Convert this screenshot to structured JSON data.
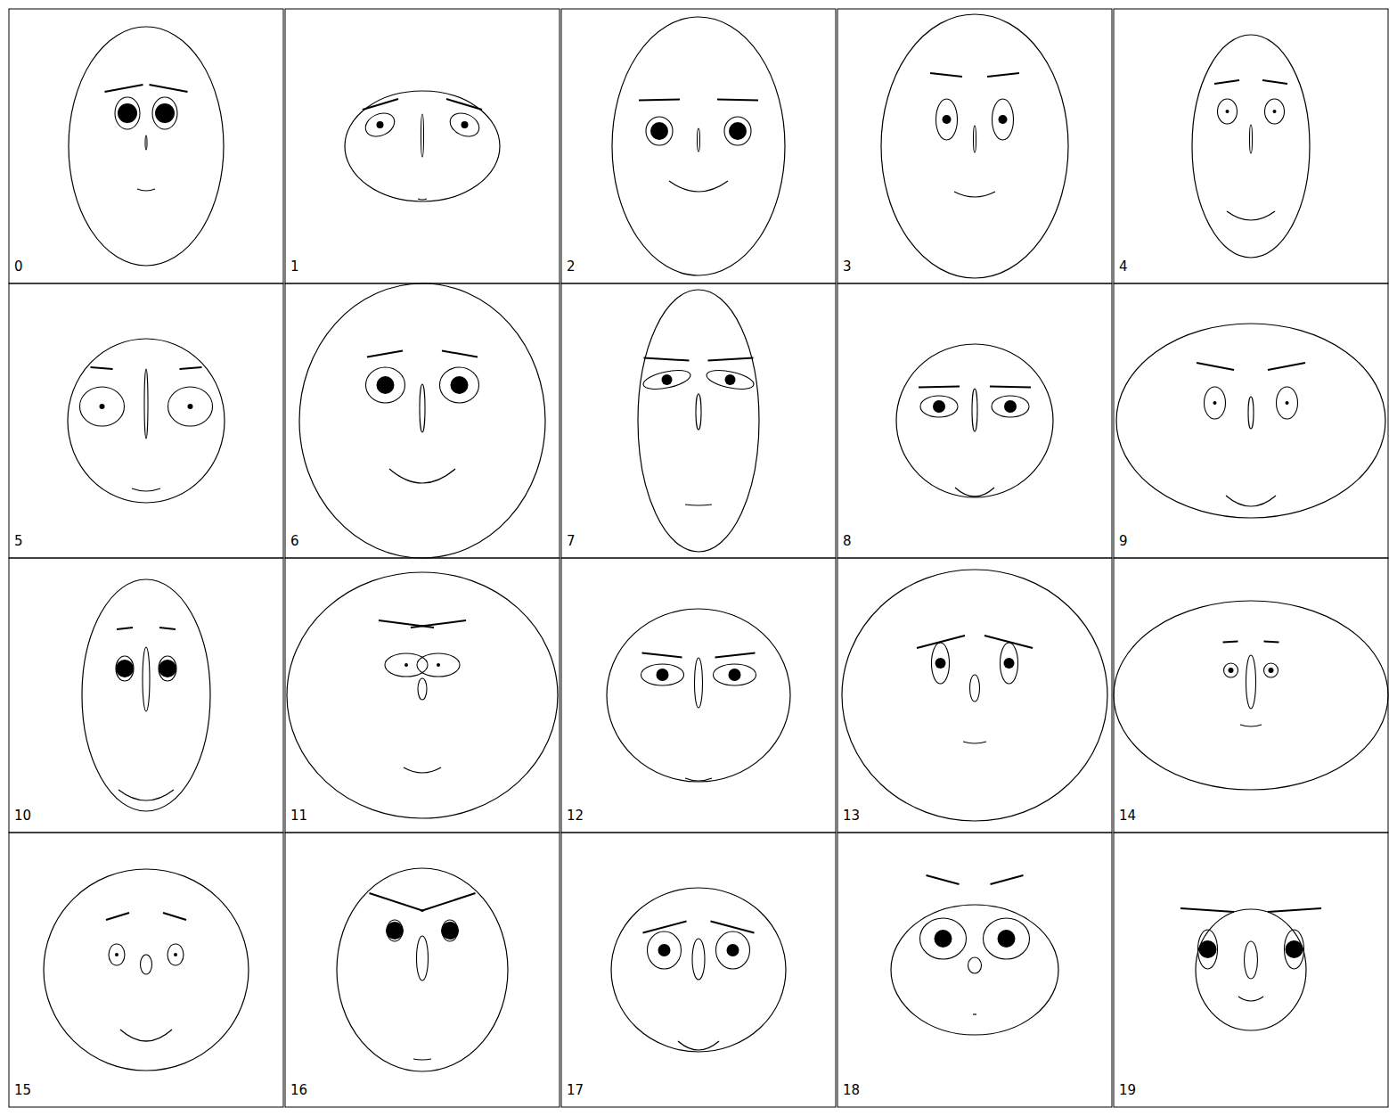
{
  "chart_data": {
    "type": "chernoff",
    "faces": [
      {
        "label": 0,
        "face_rx": 87,
        "face_ry": 134,
        "eye_y": -37,
        "eye_dx": 21,
        "eye_rx": 14,
        "eye_ry": 18,
        "eye_angle": 0,
        "pupil_r": 11,
        "brow_dx": 25,
        "brow_y": -65,
        "brow_len": 43,
        "brow_slant": -8,
        "nose_y": -4,
        "nose_len": 16,
        "nose_w": 2,
        "mouth_y": 48,
        "mouth_w": 20,
        "mouth_curve": 2
      },
      {
        "label": 1,
        "face_rx": 87,
        "face_ry": 62,
        "eye_y": -24,
        "eye_dx": 47.5,
        "eye_rx": 17,
        "eye_ry": 12,
        "eye_angle": -25,
        "pupil_r": 4,
        "brow_dx": 47,
        "brow_y": -47,
        "brow_len": 40,
        "brow_slant": -12,
        "nose_y": -12,
        "nose_len": 48,
        "nose_w": 3,
        "mouth_y": 59,
        "mouth_w": 10,
        "mouth_curve": 1
      },
      {
        "label": 2,
        "face_rx": 97,
        "face_ry": 145,
        "eye_y": -17,
        "eye_dx": 44,
        "eye_rx": 15,
        "eye_ry": 16,
        "eye_angle": 0,
        "pupil_r": 10,
        "brow_dx": 44,
        "brow_y": -52,
        "brow_len": 46,
        "brow_slant": -1,
        "nose_y": -7,
        "nose_len": 26,
        "nose_w": 3,
        "mouth_y": 39,
        "mouth_w": 66,
        "mouth_curve": 12
      },
      {
        "label": 3,
        "face_rx": 105,
        "face_ry": 148,
        "eye_y": -30,
        "eye_dx": 31.5,
        "eye_rx": 12,
        "eye_ry": 23,
        "eye_angle": 0,
        "pupil_r": 5,
        "brow_dx": 32,
        "brow_y": -80,
        "brow_len": 36,
        "brow_slant": 4,
        "nose_y": -8,
        "nose_len": 30,
        "nose_w": 3,
        "mouth_y": 51,
        "mouth_w": 46,
        "mouth_curve": 6
      },
      {
        "label": 4,
        "face_rx": 66,
        "face_ry": 125,
        "eye_y": -39,
        "eye_dx": 26.5,
        "eye_rx": 11,
        "eye_ry": 14,
        "eye_angle": 0,
        "pupil_r": 2,
        "brow_dx": 27,
        "brow_y": -72,
        "brow_len": 28,
        "brow_slant": -4,
        "nose_y": -8,
        "nose_len": 32,
        "nose_w": 3,
        "mouth_y": 73,
        "mouth_w": 54,
        "mouth_curve": 10
      },
      {
        "label": 5,
        "face_rx": 88,
        "face_ry": 92,
        "eye_y": -16,
        "eye_dx": 49.5,
        "eye_rx": 25,
        "eye_ry": 22,
        "eye_angle": 0,
        "pupil_r": 3,
        "brow_dx": 50,
        "brow_y": -59,
        "brow_len": 25,
        "brow_slant": 2,
        "nose_y": -19,
        "nose_len": 78,
        "nose_w": 4,
        "mouth_y": 76,
        "mouth_w": 32,
        "mouth_curve": 3
      },
      {
        "label": 6,
        "face_rx": 138,
        "face_ry": 154,
        "eye_y": -40,
        "eye_dx": 41.5,
        "eye_rx": 22,
        "eye_ry": 20,
        "eye_angle": 0,
        "pupil_r": 10,
        "brow_dx": 42,
        "brow_y": -75,
        "brow_len": 40,
        "brow_slant": -7,
        "nose_y": -14,
        "nose_len": 54,
        "nose_w": 6,
        "mouth_y": 54,
        "mouth_w": 74,
        "mouth_curve": 16
      },
      {
        "label": 7,
        "face_rx": 68,
        "face_ry": 147,
        "eye_y": -46,
        "eye_dx": 35.5,
        "eye_rx": 27,
        "eye_ry": 9,
        "eye_angle": -12,
        "pupil_r": 6,
        "brow_dx": 36,
        "brow_y": -69,
        "brow_len": 51,
        "brow_slant": 3,
        "nose_y": -10,
        "nose_len": 40,
        "nose_w": 6,
        "mouth_y": 94,
        "mouth_w": 30,
        "mouth_curve": 1
      },
      {
        "label": 8,
        "face_rx": 88,
        "face_ry": 86,
        "eye_y": -16,
        "eye_dx": 40,
        "eye_rx": 21,
        "eye_ry": 12,
        "eye_angle": 0,
        "pupil_r": 7,
        "brow_dx": 40,
        "brow_y": -38,
        "brow_len": 46,
        "brow_slant": -1,
        "nose_y": -12,
        "nose_len": 48,
        "nose_w": 6,
        "mouth_y": 75,
        "mouth_w": 44,
        "mouth_curve": 10
      },
      {
        "label": 9,
        "face_rx": 151,
        "face_ry": 109,
        "eye_y": -20,
        "eye_dx": 40.5,
        "eye_rx": 12,
        "eye_ry": 18,
        "eye_angle": 0,
        "pupil_r": 2,
        "brow_dx": 40,
        "brow_y": -61,
        "brow_len": 42,
        "brow_slant": 8,
        "nose_y": -9,
        "nose_len": 36,
        "nose_w": 6,
        "mouth_y": 84,
        "mouth_w": 56,
        "mouth_curve": 12
      },
      {
        "label": 10,
        "face_rx": 72,
        "face_ry": 130,
        "eye_y": -30,
        "eye_dx": 24,
        "eye_rx": 10,
        "eye_ry": 14,
        "eye_angle": 0,
        "pupil_r": 10,
        "brow_dx": 24,
        "brow_y": -75,
        "brow_len": 18,
        "brow_slant": -2,
        "nose_y": -18,
        "nose_len": 72,
        "nose_w": 8,
        "mouth_y": 106,
        "mouth_w": 62,
        "mouth_curve": 12
      },
      {
        "label": 11,
        "face_rx": 152,
        "face_ry": 138,
        "eye_y": -34,
        "eye_dx": 18,
        "eye_rx": 24,
        "eye_ry": 13,
        "eye_angle": 0,
        "pupil_r": 2,
        "brow_dx": 18,
        "brow_y": -80,
        "brow_len": 62,
        "brow_slant": 8,
        "nose_y": -7,
        "nose_len": 24,
        "nose_w": 10,
        "mouth_y": 81,
        "mouth_w": 42,
        "mouth_curve": 6
      },
      {
        "label": 12,
        "face_rx": 103,
        "face_ry": 97,
        "eye_y": -23,
        "eye_dx": 40.5,
        "eye_rx": 24,
        "eye_ry": 12,
        "eye_angle": 0,
        "pupil_r": 7,
        "brow_dx": 41,
        "brow_y": -45,
        "brow_len": 45,
        "brow_slant": 5,
        "nose_y": -14,
        "nose_len": 56,
        "nose_w": 9,
        "mouth_y": 93,
        "mouth_w": 30,
        "mouth_curve": 3
      },
      {
        "label": 13,
        "face_rx": 149,
        "face_ry": 141,
        "eye_y": -36,
        "eye_dx": 38.5,
        "eye_rx": 10,
        "eye_ry": 23,
        "eye_angle": 0,
        "pupil_r": 6,
        "brow_dx": 38,
        "brow_y": -60,
        "brow_len": 54,
        "brow_slant": -14,
        "nose_y": -8,
        "nose_len": 30,
        "nose_w": 11,
        "mouth_y": 52,
        "mouth_w": 26,
        "mouth_curve": 2
      },
      {
        "label": 14,
        "face_rx": 154,
        "face_ry": 106,
        "eye_y": -28,
        "eye_dx": 22.5,
        "eye_rx": 8,
        "eye_ry": 8,
        "eye_angle": 0,
        "pupil_r": 3,
        "brow_dx": 23,
        "brow_y": -60,
        "brow_len": 17,
        "brow_slant": -1,
        "nose_y": -15,
        "nose_len": 60,
        "nose_w": 11,
        "mouth_y": 33,
        "mouth_w": 24,
        "mouth_curve": 2
      },
      {
        "label": 15,
        "face_rx": 115,
        "face_ry": 113,
        "eye_y": -17,
        "eye_dx": 33,
        "eye_rx": 9,
        "eye_ry": 12,
        "eye_angle": 0,
        "pupil_r": 2,
        "brow_dx": 32,
        "brow_y": -60,
        "brow_len": 26,
        "brow_slant": -8,
        "nose_y": -6,
        "nose_len": 22,
        "nose_w": 13,
        "mouth_y": 67,
        "mouth_w": 58,
        "mouth_curve": 13
      },
      {
        "label": 16,
        "face_rx": 96,
        "face_ry": 114,
        "eye_y": -44,
        "eye_dx": 31,
        "eye_rx": 9,
        "eye_ry": 12,
        "eye_angle": 0,
        "pupil_r": 10,
        "brow_dx": 29,
        "brow_y": -76,
        "brow_len": 61,
        "brow_slant": 20,
        "nose_y": -13,
        "nose_len": 50,
        "nose_w": 13,
        "mouth_y": 100,
        "mouth_w": 20,
        "mouth_curve": 1
      },
      {
        "label": 17,
        "face_rx": 98,
        "face_ry": 92,
        "eye_y": -22,
        "eye_dx": 38.5,
        "eye_rx": 19,
        "eye_ry": 21,
        "eye_angle": 0,
        "pupil_r": 7,
        "brow_dx": 38,
        "brow_y": -48,
        "brow_len": 49,
        "brow_slant": -13,
        "nose_y": -12,
        "nose_len": 46,
        "nose_w": 14,
        "mouth_y": 80,
        "mouth_w": 46,
        "mouth_curve": 10
      },
      {
        "label": 18,
        "face_rx": 94,
        "face_ry": 73,
        "eye_y": -35,
        "eye_dx": 35.5,
        "eye_rx": 26,
        "eye_ry": 23,
        "eye_angle": 0,
        "pupil_r": 10,
        "brow_dx": 36,
        "brow_y": -101,
        "brow_len": 37,
        "brow_slant": 10,
        "nose_y": -5,
        "nose_len": 18,
        "nose_w": 15,
        "mouth_y": 50,
        "mouth_w": 4,
        "mouth_curve": 0
      },
      {
        "label": 19,
        "face_rx": 62,
        "face_ry": 68,
        "eye_y": -23,
        "eye_dx": 48.5,
        "eye_rx": 11,
        "eye_ry": 22,
        "eye_angle": 0,
        "pupil_r": 10,
        "brow_dx": 49,
        "brow_y": -67,
        "brow_len": 60,
        "brow_slant": 4,
        "nose_y": -11,
        "nose_len": 42,
        "nose_w": 15,
        "mouth_y": 30,
        "mouth_w": 28,
        "mouth_curve": 5
      }
    ]
  }
}
